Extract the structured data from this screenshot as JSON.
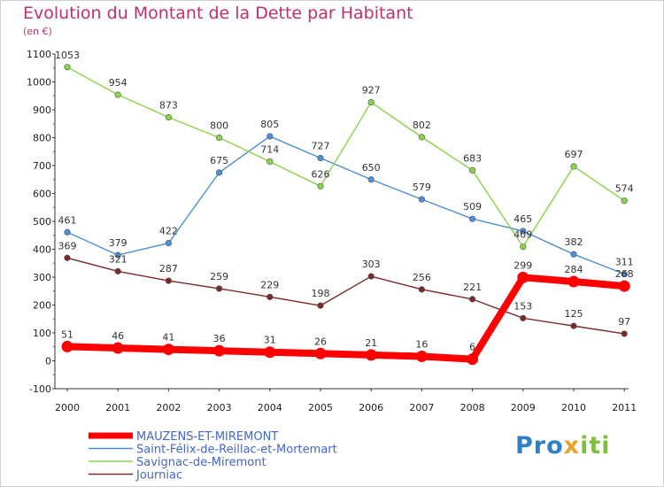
{
  "header": {
    "title": "Evolution du Montant de la Dette par Habitant",
    "subtitle": "(en €)"
  },
  "logo": {
    "text": "Proxiti",
    "parts": [
      "Pro",
      "x",
      "iti"
    ]
  },
  "chart_data": {
    "type": "line",
    "title": "Evolution du Montant de la Dette par Habitant",
    "ylabel": "(en €)",
    "xlabel": "",
    "x": [
      "2000",
      "2001",
      "2002",
      "2003",
      "2004",
      "2005",
      "2006",
      "2007",
      "2008",
      "2009",
      "2010",
      "2011"
    ],
    "ylim": [
      -100,
      1100
    ],
    "yticks": [
      -100,
      0,
      100,
      200,
      300,
      400,
      500,
      600,
      700,
      800,
      900,
      1000,
      1100
    ],
    "grid": false,
    "legend": "bottom",
    "series": [
      {
        "name": "Saint-Félix-de-Reillac-et-Mortemart",
        "color": "#4d8fd6",
        "thick": false,
        "values": [
          461,
          379,
          422,
          675,
          805,
          727,
          650,
          579,
          509,
          465,
          382,
          311
        ]
      },
      {
        "name": "Savignac-de-Miremont",
        "color": "#88d44c",
        "thick": false,
        "values": [
          1053,
          954,
          873,
          800,
          714,
          626,
          927,
          802,
          683,
          409,
          697,
          574
        ]
      },
      {
        "name": "Journiac",
        "color": "#7a2a2a",
        "thick": false,
        "values": [
          369,
          321,
          287,
          259,
          229,
          198,
          303,
          256,
          221,
          153,
          125,
          97
        ]
      },
      {
        "name": "MAUZENS-ET-MIREMONT",
        "color": "#ff0000",
        "thick": true,
        "values": [
          51,
          46,
          41,
          36,
          31,
          26,
          21,
          16,
          6,
          299,
          284,
          268
        ]
      }
    ],
    "legend_order": [
      "MAUZENS-ET-MIREMONT",
      "Saint-Félix-de-Reillac-et-Mortemart",
      "Savignac-de-Miremont",
      "Journiac"
    ]
  }
}
